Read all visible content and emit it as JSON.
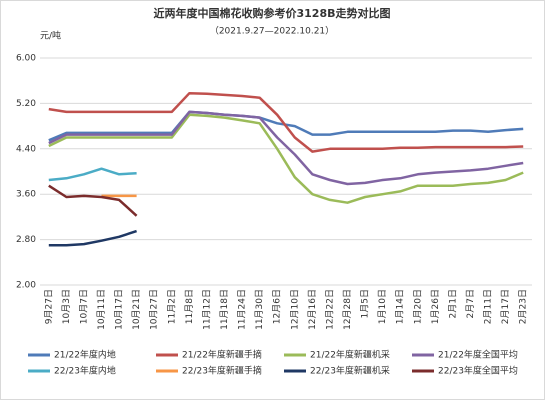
{
  "chart_data": {
    "type": "line",
    "title": "近两年度中国棉花收购参考价3128B走势对比图",
    "subtitle": "（2021.9.27—2022.10.21）",
    "y_label": "元/吨",
    "categories": [
      "9月27日",
      "10月3日",
      "10月7日",
      "10月11日",
      "10月17日",
      "10月21日",
      "10月27日",
      "11月2日",
      "11月8日",
      "11月12日",
      "11月18日",
      "11月24日",
      "11月30日",
      "12月6日",
      "12月10日",
      "12月16日",
      "12月22日",
      "12月28日",
      "1月5日",
      "1月10日",
      "1月14日",
      "1月20日",
      "1月26日",
      "2月1日",
      "2月7日",
      "2月11日",
      "2月17日",
      "2月23日"
    ],
    "ylim": [
      2,
      6
    ],
    "yticks": [
      {
        "value": 2,
        "label": "2.00"
      },
      {
        "value": 2.8,
        "label": "2.80"
      },
      {
        "value": 3.6,
        "label": "3.60"
      },
      {
        "value": 4.4,
        "label": "4.40"
      },
      {
        "value": 5.2,
        "label": "5.20"
      },
      {
        "value": 6,
        "label": "6.00"
      }
    ],
    "grid": true,
    "series": [
      {
        "name": "21/22年度内地",
        "color": "#4f7bb8",
        "values": [
          4.55,
          4.68,
          4.68,
          4.68,
          4.68,
          4.68,
          4.68,
          4.68,
          5.05,
          5.03,
          5.0,
          4.98,
          4.95,
          4.85,
          4.8,
          4.65,
          4.65,
          4.7,
          4.7,
          4.7,
          4.7,
          4.7,
          4.7,
          4.72,
          4.72,
          4.7,
          4.73,
          4.75
        ]
      },
      {
        "name": "21/22年度新疆手摘",
        "color": "#c0504d",
        "values": [
          5.1,
          5.05,
          5.05,
          5.05,
          5.05,
          5.05,
          5.05,
          5.05,
          5.38,
          5.37,
          5.35,
          5.33,
          5.3,
          5.0,
          4.6,
          4.35,
          4.4,
          4.4,
          4.4,
          4.4,
          4.42,
          4.42,
          4.43,
          4.43,
          4.43,
          4.43,
          4.43,
          4.44
        ]
      },
      {
        "name": "21/22年度新疆机采",
        "color": "#9bbb59",
        "values": [
          4.45,
          4.6,
          4.6,
          4.6,
          4.6,
          4.6,
          4.6,
          4.6,
          5.0,
          4.98,
          4.95,
          4.9,
          4.85,
          4.4,
          3.9,
          3.6,
          3.5,
          3.45,
          3.55,
          3.6,
          3.65,
          3.75,
          3.75,
          3.75,
          3.78,
          3.8,
          3.85,
          3.98
        ]
      },
      {
        "name": "21/22年度全国平均",
        "color": "#8064a2",
        "values": [
          4.5,
          4.65,
          4.65,
          4.65,
          4.65,
          4.65,
          4.65,
          4.65,
          5.05,
          5.03,
          5.0,
          4.98,
          4.95,
          4.6,
          4.3,
          3.95,
          3.85,
          3.78,
          3.8,
          3.85,
          3.88,
          3.95,
          3.98,
          4.0,
          4.02,
          4.05,
          4.1,
          4.15
        ]
      },
      {
        "name": "22/23年度内地",
        "color": "#4bacc6",
        "values": [
          3.85,
          3.88,
          3.95,
          4.05,
          3.95,
          3.97,
          null,
          null,
          null,
          null,
          null,
          null,
          null,
          null,
          null,
          null,
          null,
          null,
          null,
          null,
          null,
          null,
          null,
          null,
          null,
          null,
          null,
          null
        ]
      },
      {
        "name": "22/23年度新疆手摘",
        "color": "#f79646",
        "values": [
          null,
          null,
          null,
          3.57,
          3.57,
          3.57,
          null,
          null,
          null,
          null,
          null,
          null,
          null,
          null,
          null,
          null,
          null,
          null,
          null,
          null,
          null,
          null,
          null,
          null,
          null,
          null,
          null,
          null
        ]
      },
      {
        "name": "22/23年度新疆机采",
        "color": "#1f3864",
        "values": [
          2.7,
          2.7,
          2.72,
          2.78,
          2.85,
          2.95,
          null,
          null,
          null,
          null,
          null,
          null,
          null,
          null,
          null,
          null,
          null,
          null,
          null,
          null,
          null,
          null,
          null,
          null,
          null,
          null,
          null,
          null
        ]
      },
      {
        "name": "22/23年度全国平均",
        "color": "#7b2c2c",
        "values": [
          3.75,
          3.55,
          3.57,
          3.55,
          3.5,
          3.22,
          null,
          null,
          null,
          null,
          null,
          null,
          null,
          null,
          null,
          null,
          null,
          null,
          null,
          null,
          null,
          null,
          null,
          null,
          null,
          null,
          null,
          null
        ]
      }
    ]
  }
}
